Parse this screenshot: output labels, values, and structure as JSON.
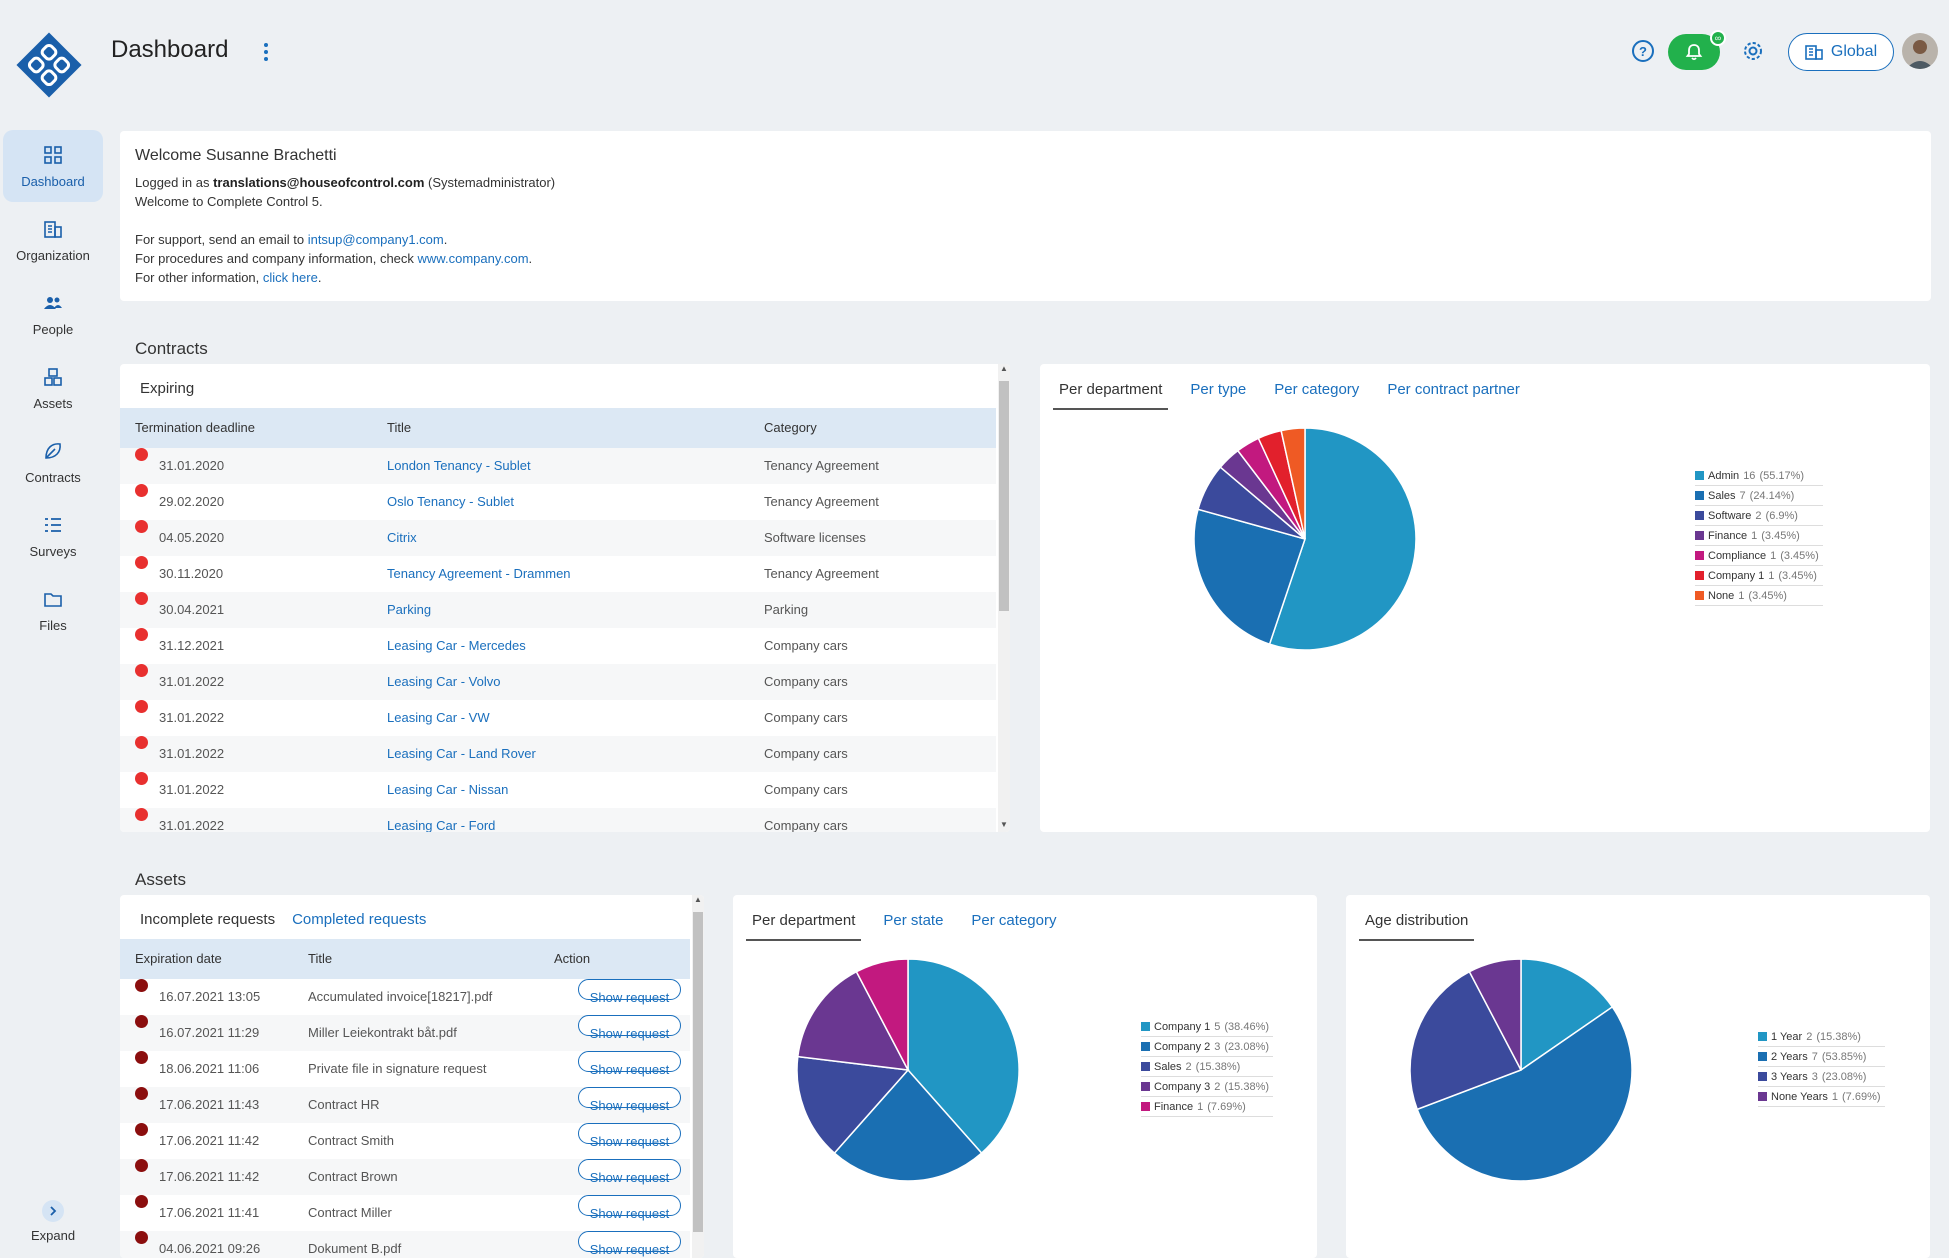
{
  "header": {
    "title": "Dashboard",
    "global_label": "Global",
    "notification_badge": "∞"
  },
  "sidebar": {
    "items": [
      {
        "label": "Dashboard",
        "icon": "dashboard-icon",
        "active": true
      },
      {
        "label": "Organization",
        "icon": "building-icon"
      },
      {
        "label": "People",
        "icon": "people-icon"
      },
      {
        "label": "Assets",
        "icon": "assets-icon"
      },
      {
        "label": "Contracts",
        "icon": "contracts-icon"
      },
      {
        "label": "Surveys",
        "icon": "list-icon"
      },
      {
        "label": "Files",
        "icon": "folder-icon"
      }
    ],
    "expand_label": "Expand"
  },
  "welcome": {
    "title": "Welcome Susanne Brachetti",
    "logged_in_prefix": "Logged in as ",
    "logged_in_user": "translations@houseofcontrol.com",
    "logged_in_role": " (Systemadministrator)",
    "welcome_line": "Welcome to Complete Control 5.",
    "support_prefix": "For support, send an email to ",
    "support_email": "intsup@company1.com",
    "support_suffix": ".",
    "procedures_prefix": "For procedures and company information, check ",
    "procedures_link": "www.company.com",
    "procedures_suffix": ".",
    "other_prefix": "For other information, ",
    "other_link": "click here",
    "other_suffix": "."
  },
  "contracts": {
    "section_title": "Contracts",
    "table": {
      "tab": "Expiring",
      "columns": [
        "Termination deadline",
        "Title",
        "Category"
      ],
      "rows": [
        {
          "date": "31.01.2020",
          "title": "London Tenancy - Sublet",
          "category": "Tenancy Agreement"
        },
        {
          "date": "29.02.2020",
          "title": "Oslo Tenancy - Sublet",
          "category": "Tenancy Agreement"
        },
        {
          "date": "04.05.2020",
          "title": "Citrix",
          "category": "Software licenses"
        },
        {
          "date": "30.11.2020",
          "title": "Tenancy Agreement - Drammen",
          "category": "Tenancy Agreement"
        },
        {
          "date": "30.04.2021",
          "title": "Parking",
          "category": "Parking"
        },
        {
          "date": "31.12.2021",
          "title": "Leasing Car - Mercedes",
          "category": "Company cars"
        },
        {
          "date": "31.01.2022",
          "title": "Leasing Car - Volvo",
          "category": "Company cars"
        },
        {
          "date": "31.01.2022",
          "title": "Leasing Car - VW",
          "category": "Company cars"
        },
        {
          "date": "31.01.2022",
          "title": "Leasing Car - Land Rover",
          "category": "Company cars"
        },
        {
          "date": "31.01.2022",
          "title": "Leasing Car - Nissan",
          "category": "Company cars"
        },
        {
          "date": "31.01.2022",
          "title": "Leasing Car - Ford",
          "category": "Company cars"
        }
      ],
      "dot_color": "#e8302f"
    },
    "chart_tabs": [
      "Per department",
      "Per type",
      "Per category",
      "Per contract partner"
    ]
  },
  "assets": {
    "section_title": "Assets",
    "table": {
      "tabs": [
        "Incomplete requests",
        "Completed requests"
      ],
      "columns": [
        "Expiration date",
        "Title",
        "Action"
      ],
      "action_label": "Show request",
      "rows": [
        {
          "date": "16.07.2021 13:05",
          "title": "Accumulated invoice[18217].pdf"
        },
        {
          "date": "16.07.2021 11:29",
          "title": "Miller Leiekontrakt båt.pdf"
        },
        {
          "date": "18.06.2021 11:06",
          "title": "Private file in signature request"
        },
        {
          "date": "17.06.2021 11:43",
          "title": "Contract HR"
        },
        {
          "date": "17.06.2021 11:42",
          "title": "Contract Smith"
        },
        {
          "date": "17.06.2021 11:42",
          "title": "Contract Brown"
        },
        {
          "date": "17.06.2021 11:41",
          "title": "Contract Miller"
        },
        {
          "date": "04.06.2021 09:26",
          "title": "Dokument B.pdf"
        }
      ],
      "dot_color": "#8b0e0e"
    },
    "chart_tabs": [
      "Per department",
      "Per state",
      "Per category"
    ],
    "age_tabs": [
      "Age distribution"
    ]
  },
  "chart_data": [
    {
      "type": "pie",
      "title": "",
      "slices": [
        {
          "label": "Admin",
          "value": 16,
          "pct": "55.17%",
          "color": "#2196c4"
        },
        {
          "label": "Sales",
          "value": 7,
          "pct": "24.14%",
          "color": "#1a6fb2"
        },
        {
          "label": "Software",
          "value": 2,
          "pct": "6.9%",
          "color": "#3b4a9c"
        },
        {
          "label": "Finance",
          "value": 1,
          "pct": "3.45%",
          "color": "#6a3791"
        },
        {
          "label": "Compliance",
          "value": 1,
          "pct": "3.45%",
          "color": "#c2197f"
        },
        {
          "label": "Company 1",
          "value": 1,
          "pct": "3.45%",
          "color": "#e2202c"
        },
        {
          "label": "None",
          "value": 1,
          "pct": "3.45%",
          "color": "#ef5a24"
        }
      ]
    },
    {
      "type": "pie",
      "title": "",
      "slices": [
        {
          "label": "Company 1",
          "value": 5,
          "pct": "38.46%",
          "color": "#2196c4"
        },
        {
          "label": "Company 2",
          "value": 3,
          "pct": "23.08%",
          "color": "#1a6fb2"
        },
        {
          "label": "Sales",
          "value": 2,
          "pct": "15.38%",
          "color": "#3b4a9c"
        },
        {
          "label": "Company 3",
          "value": 2,
          "pct": "15.38%",
          "color": "#6a3791"
        },
        {
          "label": "Finance",
          "value": 1,
          "pct": "7.69%",
          "color": "#c2197f"
        }
      ]
    },
    {
      "type": "pie",
      "title": "",
      "slices": [
        {
          "label": "1 Year",
          "value": 2,
          "pct": "15.38%",
          "color": "#2196c4"
        },
        {
          "label": "2 Years",
          "value": 7,
          "pct": "53.85%",
          "color": "#1a6fb2"
        },
        {
          "label": "3 Years",
          "value": 3,
          "pct": "23.08%",
          "color": "#3b4a9c"
        },
        {
          "label": "None Years",
          "value": 1,
          "pct": "7.69%",
          "color": "#6a3791"
        }
      ]
    }
  ]
}
